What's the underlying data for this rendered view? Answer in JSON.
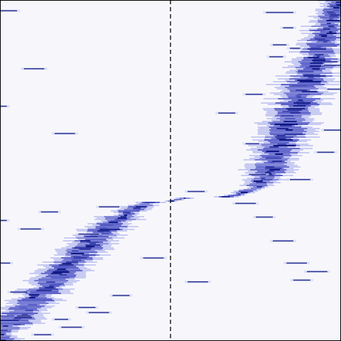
{
  "chart_data": {
    "type": "heatmap",
    "title": "",
    "xlabel": "",
    "ylabel": "",
    "grid": false,
    "legend": "none",
    "colors": {
      "background": "#f7f7fb",
      "low": "#c8cbf2",
      "mid": "#5a60c8",
      "high": "#0b1480",
      "frame": "#000000",
      "marker_line": "#000000"
    },
    "x_range": [
      0,
      1
    ],
    "y_range": [
      0,
      1
    ],
    "reference_line": {
      "x": 0.5,
      "style": "dashed"
    },
    "ridge": {
      "description_free": true,
      "points": [
        [
          0.0,
          0.02
        ],
        [
          0.05,
          0.07
        ],
        [
          0.1,
          0.12
        ],
        [
          0.15,
          0.17
        ],
        [
          0.2,
          0.22
        ],
        [
          0.25,
          0.27
        ],
        [
          0.3,
          0.32
        ],
        [
          0.35,
          0.36
        ],
        [
          0.4,
          0.39
        ],
        [
          0.45,
          0.41
        ],
        [
          0.5,
          0.41
        ],
        [
          0.55,
          0.42
        ],
        [
          0.6,
          0.42
        ],
        [
          0.65,
          0.42
        ],
        [
          0.7,
          0.43
        ],
        [
          0.75,
          0.45
        ],
        [
          0.78,
          0.48
        ],
        [
          0.8,
          0.52
        ],
        [
          0.82,
          0.57
        ],
        [
          0.84,
          0.62
        ],
        [
          0.86,
          0.67
        ],
        [
          0.88,
          0.71
        ],
        [
          0.9,
          0.76
        ],
        [
          0.92,
          0.8
        ],
        [
          0.94,
          0.86
        ],
        [
          0.96,
          0.92
        ],
        [
          0.98,
          0.97
        ],
        [
          1.0,
          1.0
        ]
      ],
      "width": [
        0.045,
        0.045,
        0.045,
        0.045,
        0.045,
        0.045,
        0.045,
        0.04,
        0.03,
        0.025,
        0.02,
        0.018,
        0.018,
        0.018,
        0.02,
        0.03,
        0.04,
        0.05,
        0.055,
        0.055,
        0.055,
        0.055,
        0.055,
        0.05,
        0.045,
        0.04,
        0.035,
        0.03
      ]
    },
    "outlier_strokes": [
      [
        0.0,
        0.05,
        0.97
      ],
      [
        0.78,
        0.86,
        0.965
      ],
      [
        0.83,
        0.86,
        0.92
      ],
      [
        0.8,
        0.84,
        0.87
      ],
      [
        0.85,
        0.88,
        0.86
      ],
      [
        0.79,
        0.83,
        0.835
      ],
      [
        0.07,
        0.13,
        0.8
      ],
      [
        0.72,
        0.77,
        0.725
      ],
      [
        0.64,
        0.69,
        0.67
      ],
      [
        0.16,
        0.22,
        0.61
      ],
      [
        0.95,
        1.0,
        0.62
      ],
      [
        0.93,
        0.98,
        0.555
      ],
      [
        0.72,
        0.76,
        0.58
      ],
      [
        0.73,
        0.78,
        0.49
      ],
      [
        0.85,
        0.91,
        0.475
      ],
      [
        0.69,
        0.75,
        0.405
      ],
      [
        0.55,
        0.6,
        0.44
      ],
      [
        0.29,
        0.35,
        0.395
      ],
      [
        0.12,
        0.17,
        0.38
      ],
      [
        0.06,
        0.12,
        0.33
      ],
      [
        0.0,
        0.02,
        0.355
      ],
      [
        0.23,
        0.29,
        0.315
      ],
      [
        0.75,
        0.8,
        0.365
      ],
      [
        0.8,
        0.86,
        0.295
      ],
      [
        0.84,
        0.9,
        0.23
      ],
      [
        0.9,
        0.96,
        0.205
      ],
      [
        0.42,
        0.48,
        0.245
      ],
      [
        0.55,
        0.61,
        0.175
      ],
      [
        0.33,
        0.38,
        0.135
      ],
      [
        0.86,
        0.91,
        0.18
      ],
      [
        0.26,
        0.32,
        0.085
      ],
      [
        0.16,
        0.2,
        0.065
      ],
      [
        0.05,
        0.09,
        0.075
      ],
      [
        0.18,
        0.24,
        0.042
      ],
      [
        0.1,
        0.15,
        0.02
      ],
      [
        0.23,
        0.28,
        0.1
      ],
      [
        0.03,
        0.08,
        0.145
      ],
      [
        0.0,
        0.03,
        0.23
      ],
      [
        0.0,
        0.02,
        0.69
      ],
      [
        0.96,
        1.0,
        0.74
      ],
      [
        0.95,
        1.0,
        0.81
      ]
    ]
  }
}
